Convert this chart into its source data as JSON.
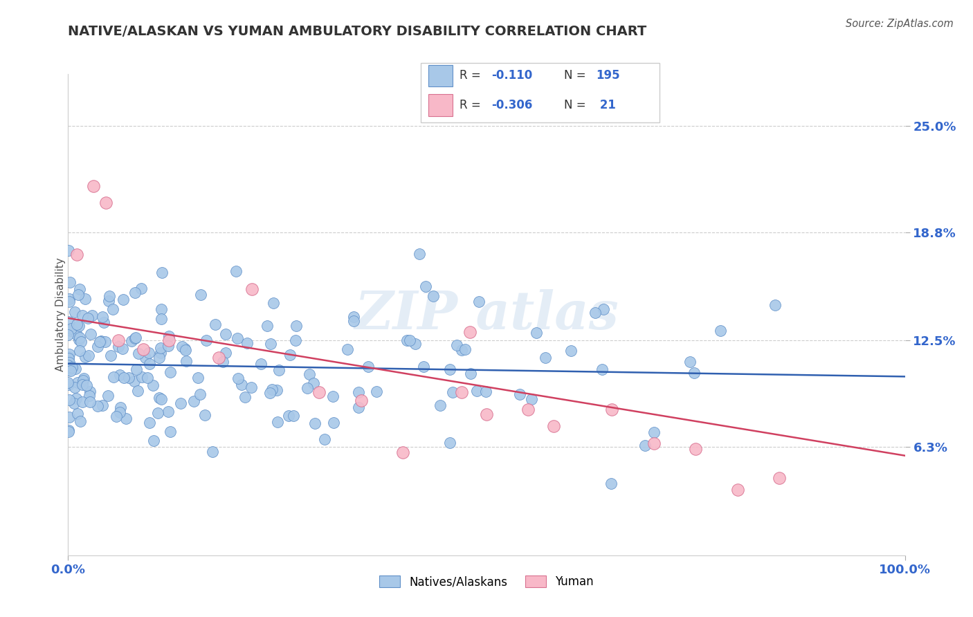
{
  "title": "NATIVE/ALASKAN VS YUMAN AMBULATORY DISABILITY CORRELATION CHART",
  "source": "Source: ZipAtlas.com",
  "ylabel": "Ambulatory Disability",
  "xlim": [
    0.0,
    1.0
  ],
  "ylim": [
    0.0,
    0.28
  ],
  "yticks": [
    0.063,
    0.125,
    0.188,
    0.25
  ],
  "ytick_labels": [
    "6.3%",
    "12.5%",
    "18.8%",
    "25.0%"
  ],
  "blue_color": "#a8c8e8",
  "blue_edge": "#6090c8",
  "pink_color": "#f8b8c8",
  "pink_edge": "#d87090",
  "line_blue": "#3060b0",
  "line_pink": "#d04060",
  "axis_label_color": "#3366cc",
  "title_color": "#333333",
  "source_color": "#555555",
  "blue_trend_y_start": 0.1115,
  "blue_trend_y_end": 0.104,
  "pink_trend_y_start": 0.138,
  "pink_trend_y_end": 0.058,
  "legend_r1": "-0.110",
  "legend_n1": "195",
  "legend_r2": "-0.306",
  "legend_n2": " 21"
}
